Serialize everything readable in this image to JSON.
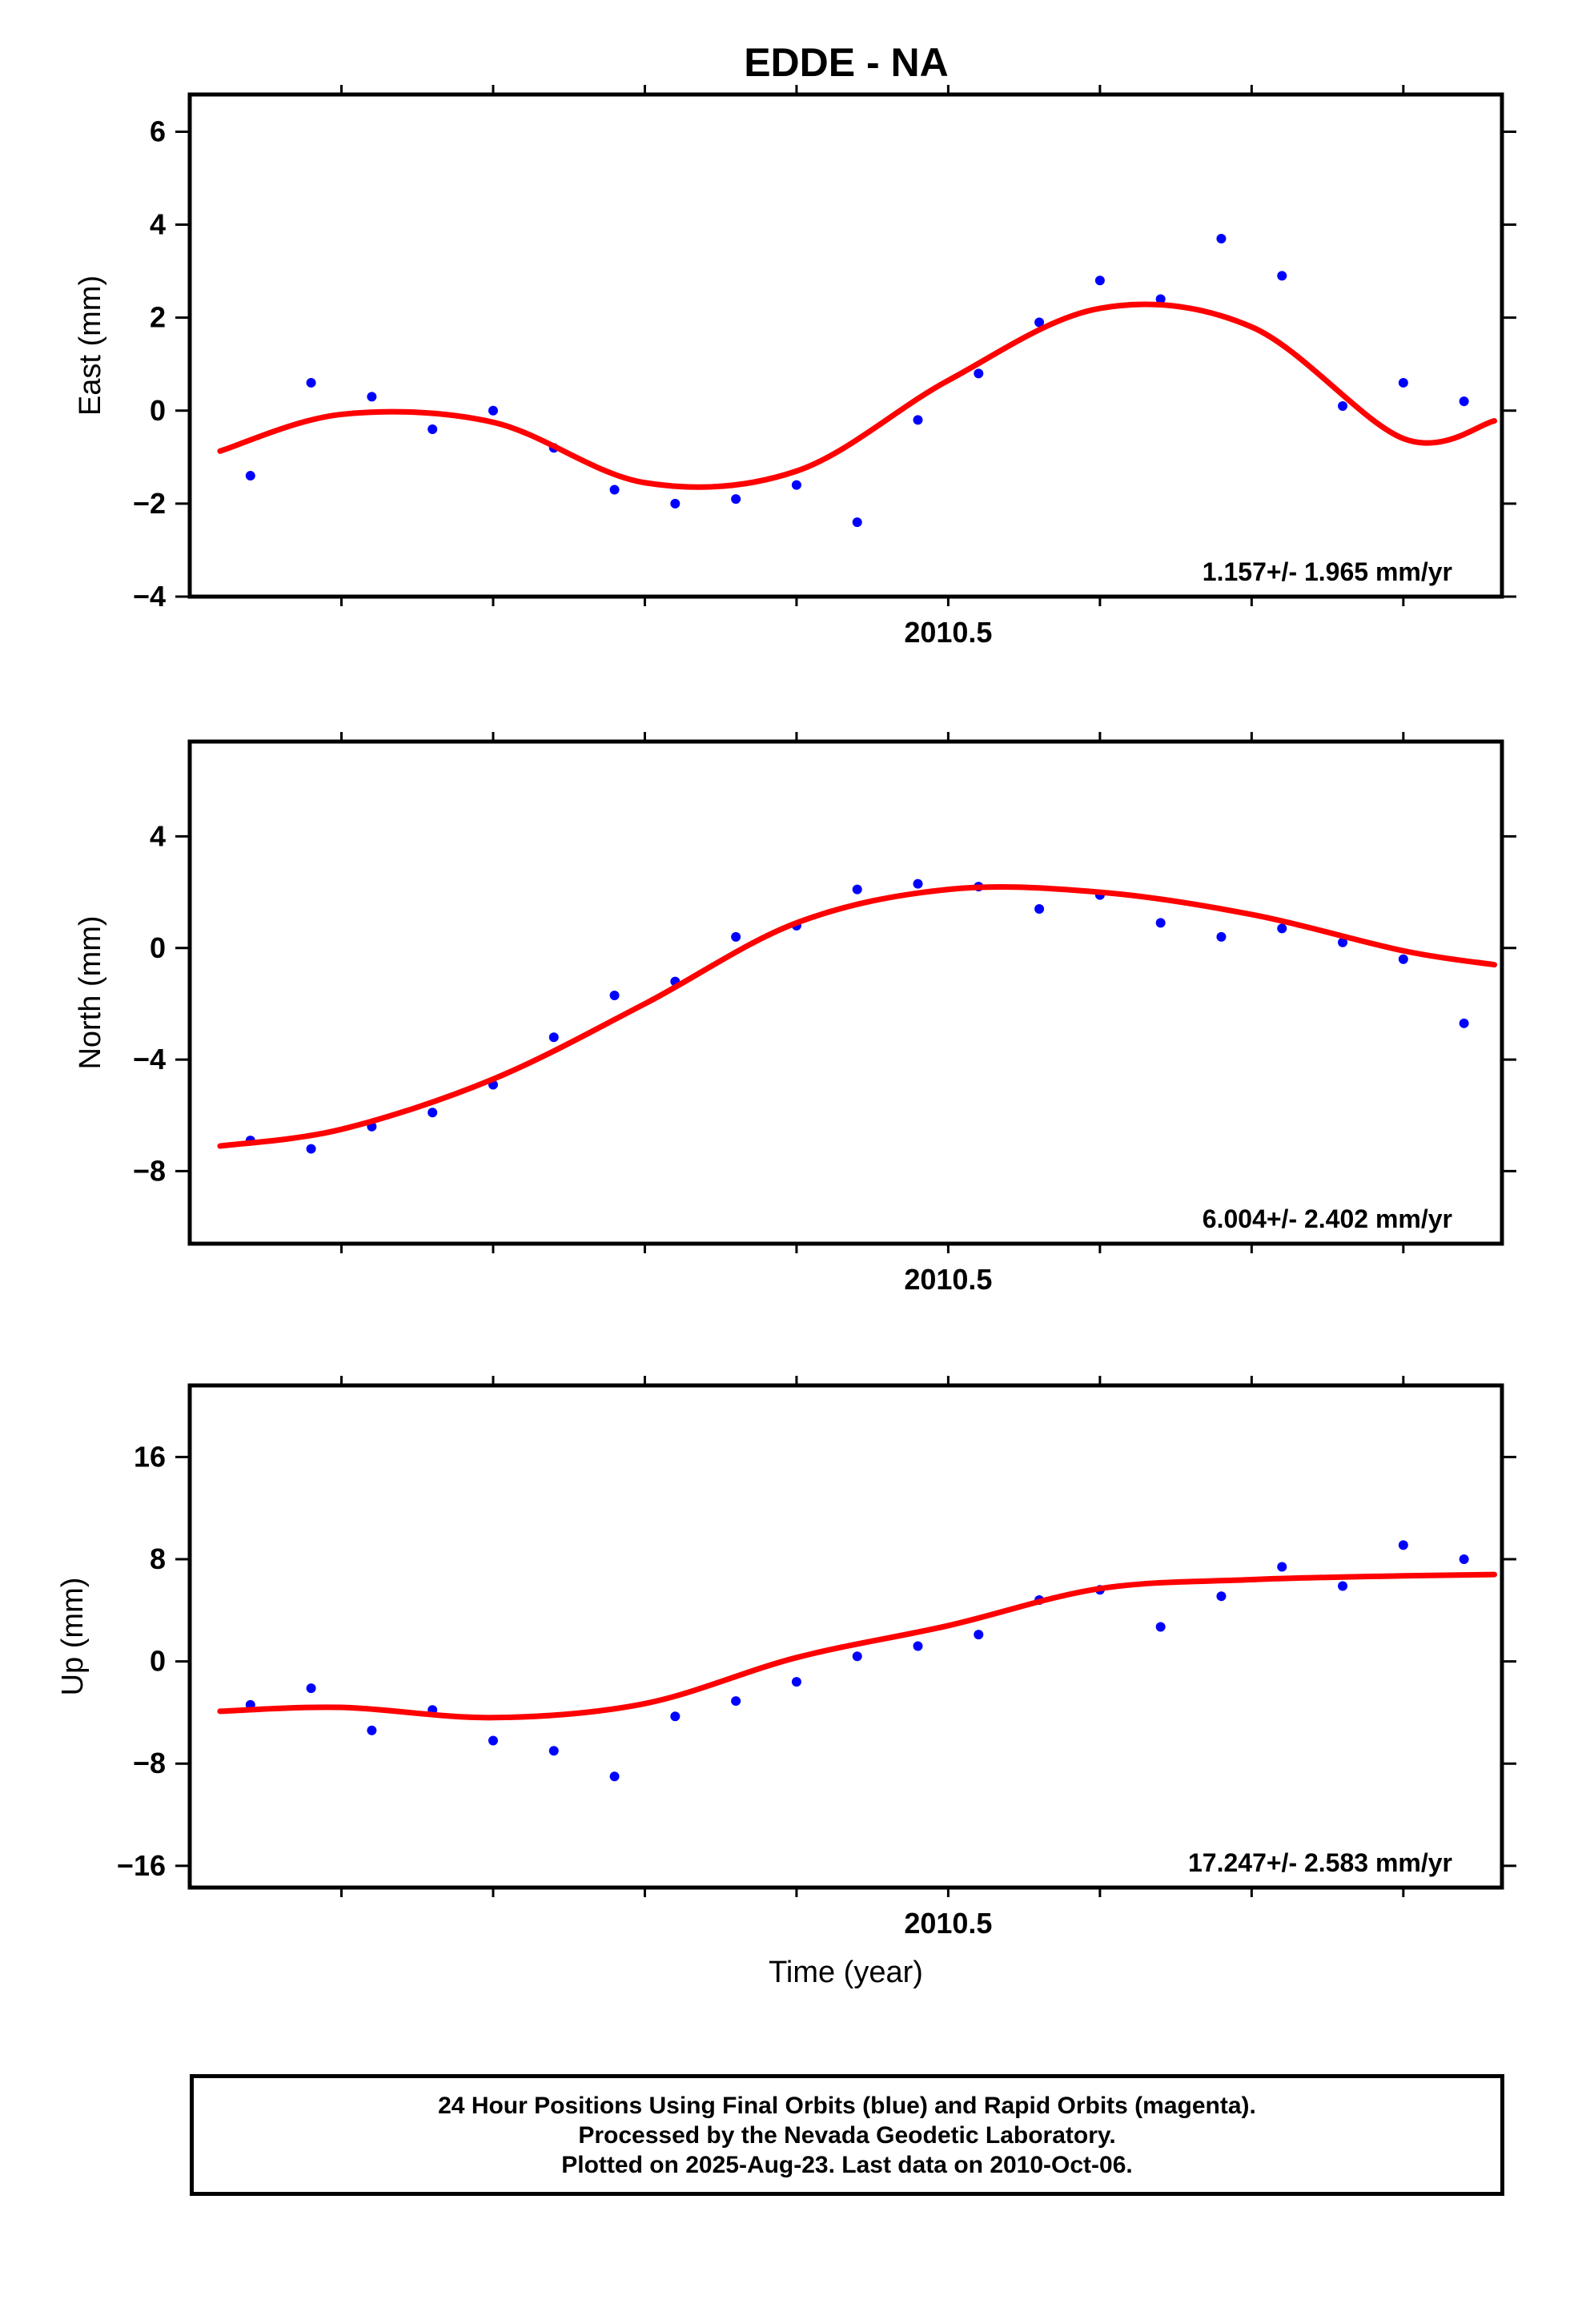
{
  "title": "EDDE - NA",
  "colors": {
    "points": "#0000ff",
    "fit": "#ff0000",
    "axes": "#000000"
  },
  "footer": {
    "line1": "24 Hour Positions Using Final Orbits (blue) and Rapid Orbits (magenta).",
    "line2": "Processed by the Nevada Geodetic Laboratory.",
    "line3": "Plotted on 2025-Aug-23. Last data on 2010-Oct-06."
  },
  "chart_data": [
    {
      "type": "scatter",
      "ylabel": "East (mm)",
      "xlabel": "",
      "x_tick_label": "2010.5",
      "xlim": [
        2010.0,
        2010.865
      ],
      "ylim": [
        -4,
        6.8
      ],
      "yticks": [
        -4,
        -2,
        0,
        2,
        4,
        6
      ],
      "rate_label": "1.157+/- 1.965 mm/yr",
      "series": [
        {
          "type": "scatter",
          "x": [
            2010.04,
            2010.08,
            2010.12,
            2010.16,
            2010.2,
            2010.24,
            2010.28,
            2010.32,
            2010.36,
            2010.4,
            2010.44,
            2010.48,
            2010.52,
            2010.56,
            2010.6,
            2010.64,
            2010.68,
            2010.72,
            2010.76,
            2010.8,
            2010.84
          ],
          "y": [
            -1.4,
            0.6,
            0.3,
            -0.4,
            0.0,
            -0.8,
            -1.7,
            -2.0,
            -1.9,
            -1.6,
            -2.4,
            -0.2,
            0.8,
            1.9,
            2.8,
            2.4,
            3.7,
            2.9,
            0.1,
            0.6,
            0.2
          ]
        },
        {
          "type": "line",
          "x": [
            2010.02,
            2010.1,
            2010.2,
            2010.3,
            2010.4,
            2010.5,
            2010.6,
            2010.7,
            2010.8,
            2010.86
          ],
          "y": [
            -0.87,
            -0.08,
            -0.25,
            -1.55,
            -1.3,
            0.65,
            2.2,
            1.8,
            -0.6,
            -0.22
          ]
        }
      ]
    },
    {
      "type": "scatter",
      "ylabel": "North (mm)",
      "xlabel": "",
      "x_tick_label": "2010.5",
      "xlim": [
        2010.0,
        2010.865
      ],
      "ylim": [
        -10.6,
        7.4
      ],
      "yticks": [
        -8,
        -4,
        0,
        4
      ],
      "rate_label": "6.004+/- 2.402 mm/yr",
      "series": [
        {
          "type": "scatter",
          "x": [
            2010.04,
            2010.08,
            2010.12,
            2010.16,
            2010.2,
            2010.24,
            2010.28,
            2010.32,
            2010.36,
            2010.4,
            2010.44,
            2010.48,
            2010.52,
            2010.56,
            2010.6,
            2010.64,
            2010.68,
            2010.72,
            2010.76,
            2010.8,
            2010.84
          ],
          "y": [
            -6.9,
            -7.2,
            -6.4,
            -5.9,
            -4.9,
            -3.2,
            -1.7,
            -1.2,
            0.4,
            0.8,
            2.1,
            2.3,
            2.2,
            1.4,
            1.9,
            0.9,
            0.4,
            0.7,
            0.2,
            -0.4,
            -2.7
          ]
        },
        {
          "type": "line",
          "x": [
            2010.02,
            2010.1,
            2010.2,
            2010.3,
            2010.4,
            2010.5,
            2010.6,
            2010.7,
            2010.8,
            2010.86
          ],
          "y": [
            -7.1,
            -6.5,
            -4.7,
            -2.0,
            0.9,
            2.1,
            2.0,
            1.2,
            -0.1,
            -0.6
          ]
        }
      ]
    },
    {
      "type": "scatter",
      "ylabel": "Up (mm)",
      "xlabel": "Time (year)",
      "x_tick_label": "2010.5",
      "xlim": [
        2010.0,
        2010.865
      ],
      "ylim": [
        -17.7,
        21.6
      ],
      "yticks": [
        -16,
        -8,
        0,
        8,
        16
      ],
      "rate_label": "17.247+/- 2.583 mm/yr",
      "series": [
        {
          "type": "scatter",
          "x": [
            2010.04,
            2010.08,
            2010.12,
            2010.16,
            2010.2,
            2010.24,
            2010.28,
            2010.32,
            2010.36,
            2010.4,
            2010.44,
            2010.48,
            2010.52,
            2010.56,
            2010.6,
            2010.64,
            2010.68,
            2010.72,
            2010.76,
            2010.8,
            2010.84
          ],
          "y": [
            -3.4,
            -2.1,
            -5.4,
            -3.8,
            -6.2,
            -7.0,
            -9.0,
            -4.3,
            -3.1,
            -1.6,
            0.4,
            1.2,
            2.1,
            4.8,
            5.6,
            2.7,
            5.1,
            7.4,
            5.9,
            9.1,
            8.0
          ]
        },
        {
          "type": "line",
          "x": [
            2010.02,
            2010.1,
            2010.2,
            2010.3,
            2010.4,
            2010.5,
            2010.6,
            2010.7,
            2010.8,
            2010.86
          ],
          "y": [
            -3.9,
            -3.6,
            -4.4,
            -3.3,
            0.3,
            2.8,
            5.7,
            6.4,
            6.7,
            6.8
          ]
        }
      ]
    }
  ]
}
